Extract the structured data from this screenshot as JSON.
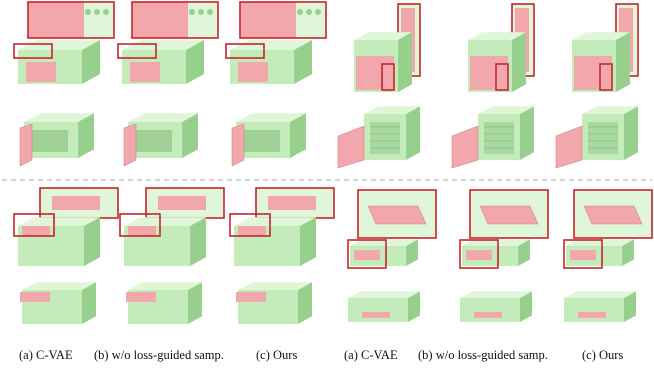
{
  "figure": {
    "colors": {
      "body": "#c4ecbb",
      "body_light": "#dff7d8",
      "body_shadow": "#97cf8d",
      "part": "#f2a7ad",
      "part_dark": "#d98088",
      "highlight_box": "#c8242c",
      "divider": "#b9b9b9"
    },
    "captions_left": [
      "(a) C-VAE",
      "(b) w/o loss-guided samp.",
      "(c) Ours"
    ],
    "captions_right": [
      "(a) C-VAE",
      "(b) w/o loss-guided samp.",
      "(c) Ours"
    ]
  }
}
